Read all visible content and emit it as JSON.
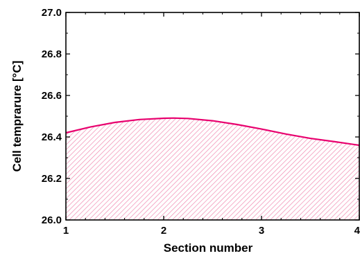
{
  "chart_data": {
    "type": "area",
    "title": "",
    "xlabel": "Section number",
    "ylabel": "Cell temprarure [°C]",
    "xlim": [
      1,
      4
    ],
    "ylim": [
      26.0,
      27.0
    ],
    "x_ticks": [
      "1",
      "2",
      "3",
      "4"
    ],
    "y_ticks": [
      "26.0",
      "26.2",
      "26.4",
      "26.6",
      "26.8",
      "27.0"
    ],
    "grid": false,
    "series": [
      {
        "x": [
          1.0,
          1.25,
          1.5,
          1.75,
          2.0,
          2.1,
          2.25,
          2.5,
          2.75,
          3.0,
          3.25,
          3.5,
          3.75,
          4.0
        ],
        "values": [
          26.42,
          26.448,
          26.47,
          26.484,
          26.49,
          26.491,
          26.489,
          26.478,
          26.46,
          26.438,
          26.414,
          26.393,
          26.377,
          26.36
        ]
      }
    ],
    "colors": {
      "line": "#e8006e",
      "hatch": "#f08ab0",
      "axis": "#000000"
    }
  }
}
